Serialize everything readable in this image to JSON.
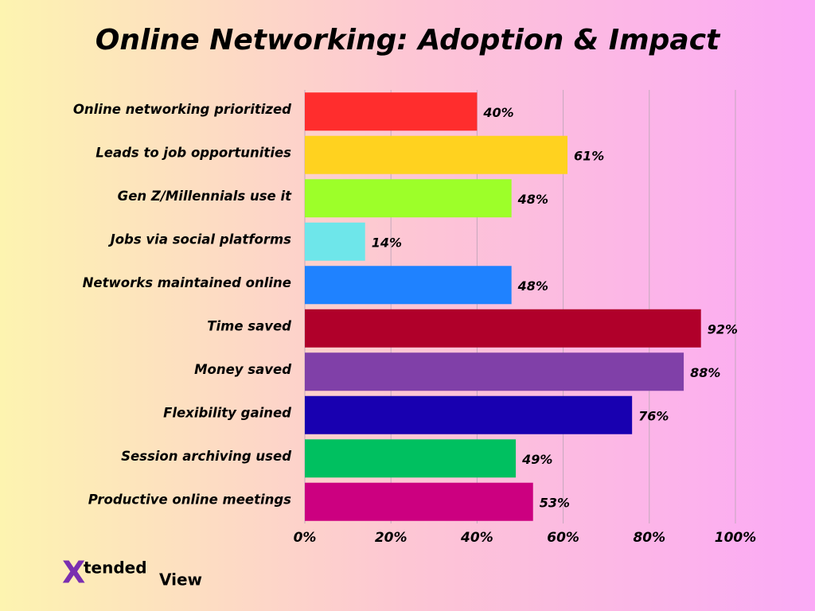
{
  "chart_data": {
    "type": "barh",
    "title": "Online Networking: Adoption & Impact",
    "categories": [
      "Online networking prioritized",
      "Leads to job opportunities",
      "Gen Z/Millennials use it",
      "Jobs via social platforms",
      "Networks maintained online",
      "Time saved",
      "Money saved",
      "Flexibility gained",
      "Session archiving used",
      "Productive online meetings"
    ],
    "values": [
      40,
      61,
      48,
      14,
      48,
      92,
      88,
      76,
      49,
      53
    ],
    "value_labels": [
      "40%",
      "61%",
      "48%",
      "14%",
      "48%",
      "92%",
      "88%",
      "76%",
      "49%",
      "53%"
    ],
    "colors": [
      "#ff2d2d",
      "#ffd21f",
      "#9dff29",
      "#6ee6ea",
      "#1f82ff",
      "#b0002a",
      "#8040a8",
      "#1800b0",
      "#00c060",
      "#cc0080"
    ],
    "xlim": [
      0,
      100
    ],
    "xticks": [
      {
        "value": 0,
        "label": "0%"
      },
      {
        "value": 20,
        "label": "20%"
      },
      {
        "value": 40,
        "label": "40%"
      },
      {
        "value": 60,
        "label": "60%"
      },
      {
        "value": 80,
        "label": "80%"
      },
      {
        "value": 100,
        "label": "100%"
      }
    ],
    "grid": true
  },
  "brand": {
    "mark": "X",
    "part1": "tended",
    "part2": "View"
  }
}
